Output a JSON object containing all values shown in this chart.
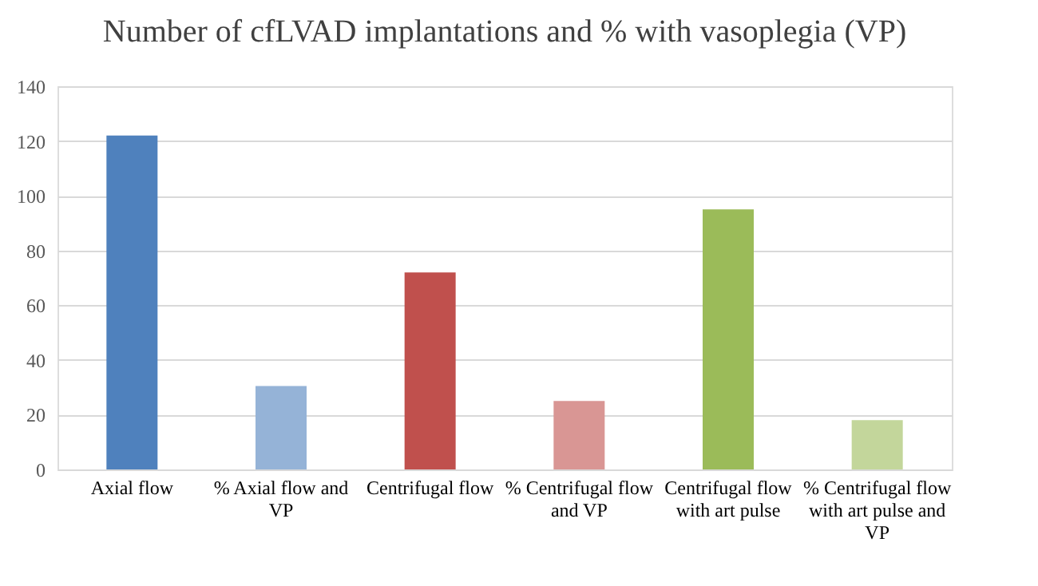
{
  "chart_data": {
    "type": "bar",
    "title": "Number of cfLVAD implantations and % with vasoplegia (VP)",
    "categories": [
      "Axial flow",
      "% Axial flow and VP",
      "Centrifugal flow",
      "% Centrifugal flow and VP",
      "Centrifugal flow with art pulse",
      "% Centrifugal flow with art pulse and VP"
    ],
    "values": [
      122,
      30.5,
      72,
      25,
      95,
      18
    ],
    "colors": [
      "#4f81bd",
      "#95b3d7",
      "#c0504d",
      "#d99694",
      "#9bbb59",
      "#c3d69b"
    ],
    "ylim": [
      0,
      140
    ],
    "yticks": [
      0,
      20,
      40,
      60,
      80,
      100,
      120,
      140
    ],
    "grid": "y",
    "legend": false
  }
}
